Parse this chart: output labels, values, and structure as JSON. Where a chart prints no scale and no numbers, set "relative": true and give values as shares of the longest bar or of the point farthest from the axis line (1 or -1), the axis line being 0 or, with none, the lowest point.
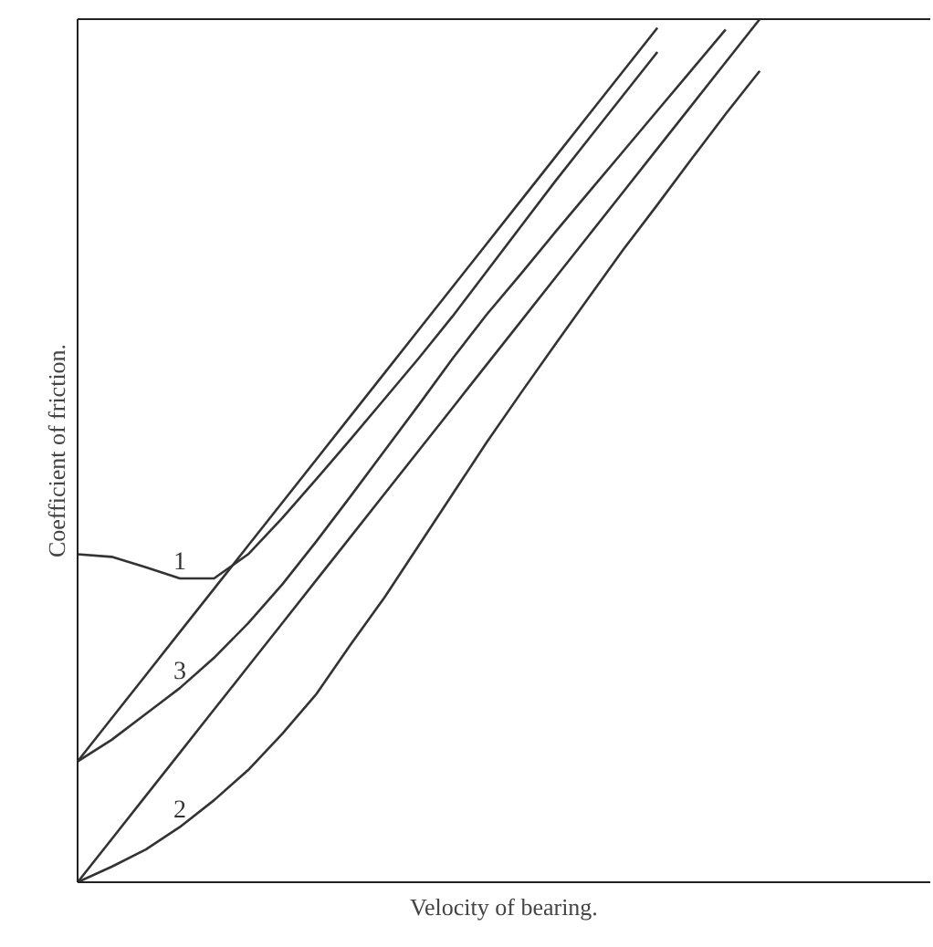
{
  "chart_data": {
    "type": "line",
    "relative": true,
    "xlabel": "Velocity of bearing.",
    "ylabel": "Coefficient of friction.",
    "categories": [
      null,
      null,
      null,
      null,
      null,
      null,
      null,
      null,
      null,
      null,
      null,
      null,
      null,
      null,
      null,
      null,
      null,
      null,
      null,
      null,
      null,
      null,
      null,
      null,
      null,
      null
    ],
    "marker": "none",
    "line_style": "solid",
    "series": [
      {
        "color": "#333333",
        "values": [
          0.14,
          0.19,
          0.24,
          0.29,
          0.34,
          0.39,
          0.44,
          0.49,
          0.54,
          0.59,
          0.64,
          0.69,
          0.74,
          0.79,
          0.84,
          0.89,
          0.94,
          0.99,
          null,
          null,
          null,
          null,
          null,
          null,
          null,
          null
        ]
      },
      {
        "name": "1",
        "color": "#333333",
        "values": [
          0.38,
          0.377,
          0.365,
          0.352,
          0.352,
          0.38,
          0.422,
          0.467,
          0.513,
          0.56,
          0.607,
          0.656,
          0.708,
          0.76,
          0.812,
          0.862,
          0.912,
          0.962,
          null,
          null,
          null,
          null,
          null,
          null,
          null,
          null
        ]
      },
      {
        "name": "3",
        "color": "#333333",
        "values": [
          0.14,
          0.165,
          0.195,
          0.225,
          0.26,
          0.3,
          0.345,
          0.395,
          0.447,
          0.5,
          0.553,
          0.607,
          0.658,
          0.705,
          0.753,
          0.8,
          0.847,
          0.894,
          0.941,
          0.988,
          null,
          null,
          null,
          null,
          null,
          null
        ]
      },
      {
        "color": "#333333",
        "values": [
          0,
          0.05,
          0.1,
          0.15,
          0.2,
          0.25,
          0.3,
          0.35,
          0.4,
          0.45,
          0.5,
          0.55,
          0.6,
          0.65,
          0.7,
          0.75,
          0.8,
          0.85,
          0.9,
          0.95,
          1,
          null,
          null,
          null,
          null,
          null
        ]
      },
      {
        "name": "2",
        "color": "#333333",
        "values": [
          0,
          0.018,
          0.038,
          0.064,
          0.095,
          0.13,
          0.172,
          0.218,
          0.275,
          0.33,
          0.39,
          0.45,
          0.51,
          0.567,
          0.623,
          0.678,
          0.733,
          0.785,
          0.838,
          0.89,
          0.94,
          null,
          null,
          null,
          null,
          null
        ]
      }
    ]
  }
}
